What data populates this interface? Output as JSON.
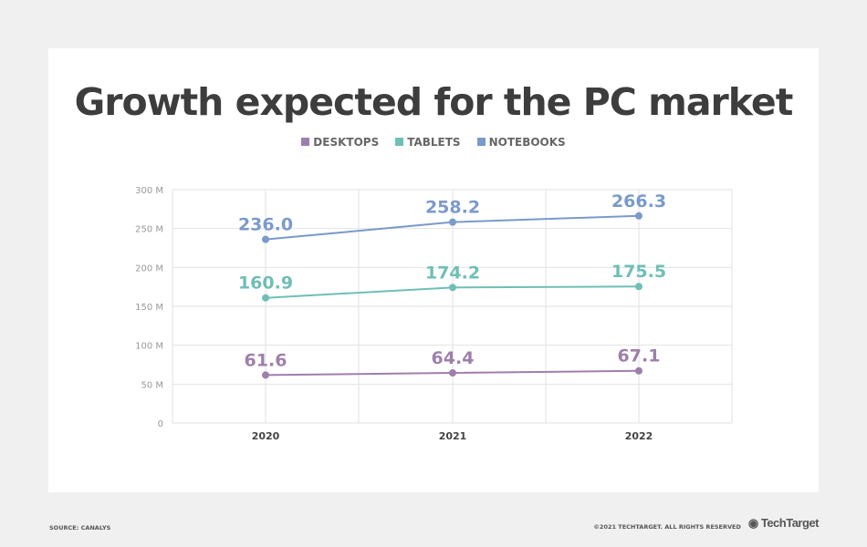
{
  "chart_data": {
    "type": "line",
    "title": "Growth expected for the PC market",
    "categories": [
      "2020",
      "2021",
      "2022"
    ],
    "series": [
      {
        "name": "DESKTOPS",
        "color": "#9e7fac",
        "values": [
          61.6,
          64.4,
          67.1
        ],
        "labels": [
          "61.6",
          "64.4",
          "67.1"
        ]
      },
      {
        "name": "TABLETS",
        "color": "#6fbfb6",
        "values": [
          160.9,
          174.2,
          175.5
        ],
        "labels": [
          "160.9",
          "174.2",
          "175.5"
        ]
      },
      {
        "name": "NOTEBOOKS",
        "color": "#7a9acb",
        "values": [
          236.0,
          258.2,
          266.3
        ],
        "labels": [
          "236.0",
          "258.2",
          "266.3"
        ]
      }
    ],
    "ylim": [
      0,
      300
    ],
    "yticks": [
      0,
      50,
      100,
      150,
      200,
      250,
      300
    ],
    "ytick_labels": [
      "0",
      "50 M",
      "100 M",
      "150 M",
      "200 M",
      "250 M",
      "300 M"
    ],
    "grid": true,
    "legend_position": "top-center"
  },
  "footer": {
    "source": "SOURCE: CANALYS",
    "copyright": "©2021 TECHTARGET. ALL RIGHTS RESERVED",
    "logo": "TechTarget"
  }
}
